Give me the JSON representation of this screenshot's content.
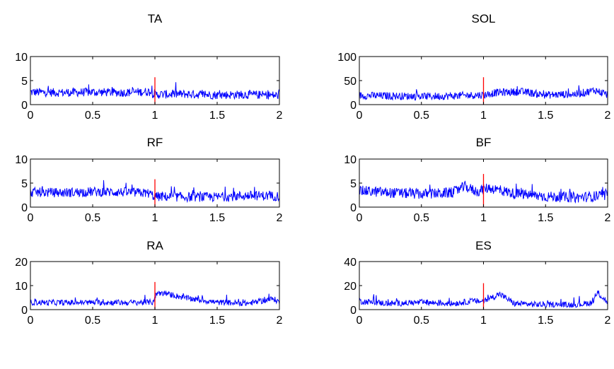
{
  "colors": {
    "signal": "#0000ff",
    "marker": "#ff0000",
    "axes": "#000000"
  },
  "chart_data": [
    {
      "type": "line",
      "title": "TA",
      "xlim": [
        0,
        2
      ],
      "ylim": [
        0,
        10
      ],
      "xticks": [
        "0",
        "0.5",
        "1",
        "1.5",
        "2"
      ],
      "yticks": [
        "0",
        "5",
        "10"
      ],
      "marker_x": 1,
      "marker_top": 5.7,
      "series": [
        {
          "x": [
            0,
            0.25,
            0.5,
            0.75,
            0.95,
            1.0,
            1.25,
            1.5,
            1.75,
            2.0
          ],
          "values": [
            2.6,
            2.5,
            2.6,
            2.5,
            2.7,
            2.1,
            2.2,
            2.0,
            2.1,
            1.9
          ],
          "spread": 0.9
        }
      ]
    },
    {
      "type": "line",
      "title": "SOL",
      "xlim": [
        0,
        2
      ],
      "ylim": [
        0,
        100
      ],
      "xticks": [
        "0",
        "0.5",
        "1",
        "1.5",
        "2"
      ],
      "yticks": [
        "0",
        "50",
        "100"
      ],
      "marker_x": 1,
      "marker_top": 57,
      "series": [
        {
          "x": [
            0,
            0.25,
            0.5,
            0.75,
            0.95,
            1.0,
            1.1,
            1.3,
            1.5,
            1.75,
            1.9,
            2.0
          ],
          "values": [
            19,
            18,
            17,
            18,
            20,
            20,
            25,
            27,
            20,
            22,
            30,
            20
          ],
          "spread": 8
        }
      ]
    },
    {
      "type": "line",
      "title": "RF",
      "xlim": [
        0,
        2
      ],
      "ylim": [
        0,
        10
      ],
      "xticks": [
        "0",
        "0.5",
        "1",
        "1.5",
        "2"
      ],
      "yticks": [
        "0",
        "5",
        "10"
      ],
      "marker_x": 1,
      "marker_top": 5.8,
      "series": [
        {
          "x": [
            0,
            0.25,
            0.5,
            0.75,
            0.95,
            1.0,
            1.25,
            1.5,
            1.75,
            2.0
          ],
          "values": [
            3.1,
            3.0,
            3.2,
            3.1,
            2.9,
            2.2,
            2.1,
            2.1,
            2.4,
            2.3
          ],
          "spread": 1.0
        }
      ]
    },
    {
      "type": "line",
      "title": "BF",
      "xlim": [
        0,
        2
      ],
      "ylim": [
        0,
        10
      ],
      "xticks": [
        "0",
        "0.5",
        "1",
        "1.5",
        "2"
      ],
      "yticks": [
        "0",
        "5",
        "10"
      ],
      "marker_x": 1,
      "marker_top": 6.9,
      "series": [
        {
          "x": [
            0,
            0.25,
            0.5,
            0.75,
            0.85,
            0.95,
            1.0,
            1.05,
            1.25,
            1.5,
            1.75,
            2.0
          ],
          "values": [
            3.4,
            3.0,
            2.7,
            3.0,
            4.3,
            3.2,
            3.8,
            4.0,
            2.8,
            2.2,
            2.0,
            2.4
          ],
          "spread": 1.1
        }
      ]
    },
    {
      "type": "line",
      "title": "RA",
      "xlim": [
        0,
        2
      ],
      "ylim": [
        0,
        20
      ],
      "xticks": [
        "0",
        "0.5",
        "1",
        "1.5",
        "2"
      ],
      "yticks": [
        "0",
        "10",
        "20"
      ],
      "marker_x": 1,
      "marker_top": 11.5,
      "series": [
        {
          "x": [
            0,
            0.25,
            0.5,
            0.75,
            0.98,
            1.02,
            1.1,
            1.25,
            1.5,
            1.75,
            1.95,
            2.0
          ],
          "values": [
            3.0,
            2.9,
            3.0,
            2.9,
            3.1,
            7.0,
            6.5,
            4.8,
            3.0,
            2.6,
            4.5,
            3.2
          ],
          "spread": 1.2
        }
      ]
    },
    {
      "type": "line",
      "title": "ES",
      "xlim": [
        0,
        2
      ],
      "ylim": [
        0,
        40
      ],
      "xticks": [
        "0",
        "0.5",
        "1",
        "1.5",
        "2"
      ],
      "yticks": [
        "0",
        "20",
        "40"
      ],
      "marker_x": 1,
      "marker_top": 22,
      "series": [
        {
          "x": [
            0,
            0.25,
            0.5,
            0.75,
            0.9,
            1.0,
            1.13,
            1.25,
            1.5,
            1.75,
            1.88,
            1.92,
            2.0
          ],
          "values": [
            7,
            5,
            6,
            5,
            7,
            7,
            13,
            5,
            4,
            4,
            6,
            14,
            6
          ],
          "spread": 2.5
        }
      ]
    }
  ]
}
